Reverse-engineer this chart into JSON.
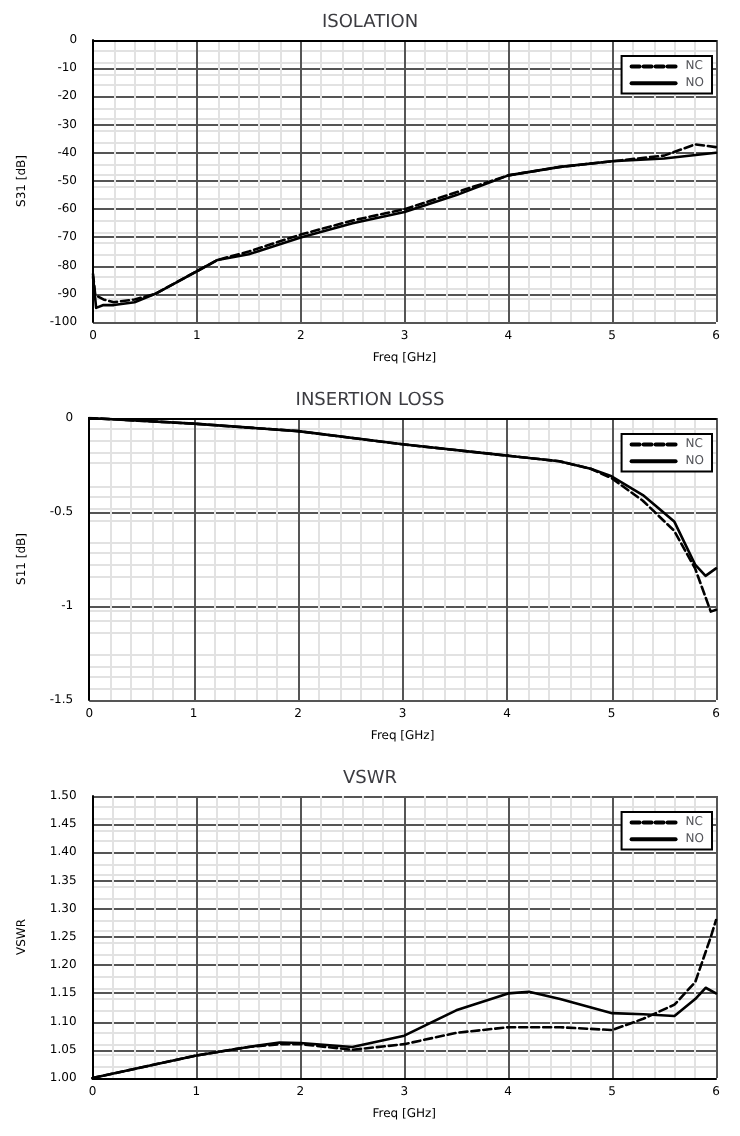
{
  "chart_data": [
    {
      "type": "line",
      "title": "ISOLATION",
      "xlabel": "Freq [GHz]",
      "ylabel": "S31 [dB]",
      "xlim": [
        0,
        6
      ],
      "xticks": [
        0,
        1,
        2,
        3,
        4,
        5,
        6
      ],
      "ylim": [
        -100,
        0
      ],
      "yticks": [
        0,
        -10,
        -20,
        -30,
        -40,
        -50,
        -60,
        -70,
        -80,
        -90,
        -100
      ],
      "grid": true,
      "legend": "top right",
      "marker": "none",
      "series": [
        {
          "name": "NC",
          "color": "#000000",
          "line_style": "dashed",
          "x": [
            0,
            0.02,
            0.05,
            0.1,
            0.2,
            0.4,
            0.6,
            0.8,
            1,
            1.2,
            1.5,
            2,
            2.5,
            3,
            3.5,
            4,
            4.5,
            5,
            5.5,
            5.8,
            6
          ],
          "values": [
            -83,
            -90,
            -91,
            -92,
            -93,
            -92,
            -90,
            -86,
            -82,
            -78,
            -75,
            -69,
            -64,
            -60,
            -54,
            -48,
            -45,
            -43,
            -41,
            -37,
            -38
          ]
        },
        {
          "name": "NO",
          "color": "#000000",
          "line_style": "solid",
          "x": [
            0,
            0.03,
            0.1,
            0.2,
            0.4,
            0.6,
            0.8,
            1,
            1.2,
            1.5,
            2,
            2.5,
            3,
            3.5,
            4,
            4.5,
            5,
            5.5,
            6
          ],
          "values": [
            -84,
            -95,
            -94,
            -94,
            -93,
            -90,
            -86,
            -82,
            -78,
            -76,
            -70,
            -65,
            -61,
            -55,
            -48,
            -45,
            -43,
            -42,
            -40
          ]
        }
      ]
    },
    {
      "type": "line",
      "title": "INSERTION LOSS",
      "xlabel": "Freq [GHz]",
      "ylabel": "S11 [dB]",
      "xlim": [
        0,
        6
      ],
      "xticks": [
        0,
        1,
        2,
        3,
        4,
        5,
        6
      ],
      "ylim": [
        -1.5,
        0
      ],
      "yticks": [
        0,
        -0.5,
        -1,
        -1.5
      ],
      "grid": true,
      "legend": "top right",
      "marker": "none",
      "series": [
        {
          "name": "NC",
          "color": "#000000",
          "line_style": "dashed",
          "x": [
            0,
            1,
            2,
            3,
            4,
            4.5,
            4.8,
            5,
            5.3,
            5.6,
            5.8,
            5.95,
            6
          ],
          "values": [
            0,
            -0.03,
            -0.07,
            -0.14,
            -0.2,
            -0.23,
            -0.27,
            -0.32,
            -0.44,
            -0.6,
            -0.8,
            -1.03,
            -1.02
          ]
        },
        {
          "name": "NO",
          "color": "#000000",
          "line_style": "solid",
          "x": [
            0,
            1,
            2,
            3,
            4,
            4.5,
            4.8,
            5,
            5.3,
            5.6,
            5.8,
            5.9,
            6
          ],
          "values": [
            0,
            -0.03,
            -0.07,
            -0.14,
            -0.2,
            -0.23,
            -0.27,
            -0.31,
            -0.41,
            -0.55,
            -0.78,
            -0.84,
            -0.8
          ]
        }
      ]
    },
    {
      "type": "line",
      "title": "VSWR",
      "xlabel": "Freq [GHz]",
      "ylabel": "VSWR",
      "xlim": [
        0,
        6
      ],
      "xticks": [
        0,
        1,
        2,
        3,
        4,
        5,
        6
      ],
      "ylim": [
        1,
        1.5
      ],
      "yticks": [
        {
          "value": 1,
          "label": "1.00"
        },
        {
          "value": 1.05,
          "label": "1.05"
        },
        {
          "value": 1.1,
          "label": "1.10"
        },
        {
          "value": 1.15,
          "label": "1.15"
        },
        {
          "value": 1.2,
          "label": "1.20"
        },
        {
          "value": 1.25,
          "label": "1.25"
        },
        {
          "value": 1.3,
          "label": "1.30"
        },
        {
          "value": 1.35,
          "label": "1.35"
        },
        {
          "value": 1.4,
          "label": "1.40"
        },
        {
          "value": 1.45,
          "label": "1.45"
        },
        {
          "value": 1.5,
          "label": "1.50"
        }
      ],
      "grid": true,
      "legend": "top right",
      "marker": "none",
      "series": [
        {
          "name": "NC",
          "color": "#000000",
          "line_style": "dashed",
          "x": [
            0,
            0.5,
            1,
            1.5,
            1.8,
            2,
            2.5,
            3,
            3.5,
            4,
            4.5,
            5,
            5.3,
            5.6,
            5.8,
            5.95,
            6
          ],
          "values": [
            1,
            1.02,
            1.04,
            1.055,
            1.06,
            1.06,
            1.05,
            1.06,
            1.08,
            1.09,
            1.09,
            1.085,
            1.105,
            1.13,
            1.17,
            1.25,
            1.28
          ]
        },
        {
          "name": "NO",
          "color": "#000000",
          "line_style": "solid",
          "x": [
            0,
            0.5,
            1,
            1.5,
            1.8,
            2,
            2.5,
            3,
            3.5,
            4,
            4.2,
            4.5,
            5,
            5.3,
            5.6,
            5.8,
            5.9,
            6
          ],
          "values": [
            1,
            1.02,
            1.04,
            1.055,
            1.063,
            1.062,
            1.055,
            1.075,
            1.12,
            1.15,
            1.153,
            1.14,
            1.115,
            1.113,
            1.11,
            1.14,
            1.16,
            1.15
          ]
        }
      ]
    }
  ]
}
